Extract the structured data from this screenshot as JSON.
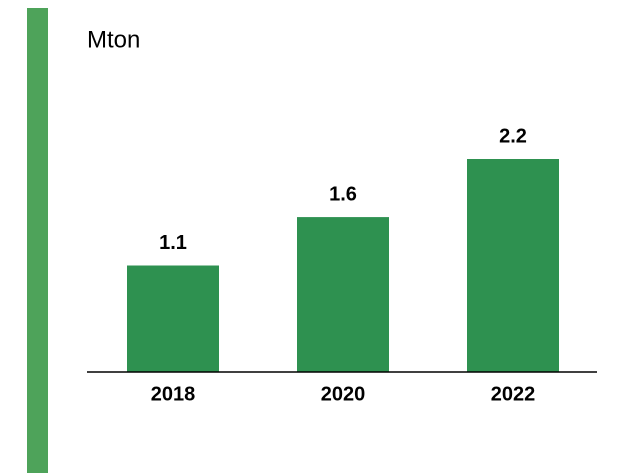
{
  "chart_data": {
    "type": "bar",
    "title": "Mton",
    "categories": [
      "2018",
      "2020",
      "2022"
    ],
    "values": [
      1.1,
      1.6,
      2.2
    ],
    "color": "#2e9150"
  }
}
